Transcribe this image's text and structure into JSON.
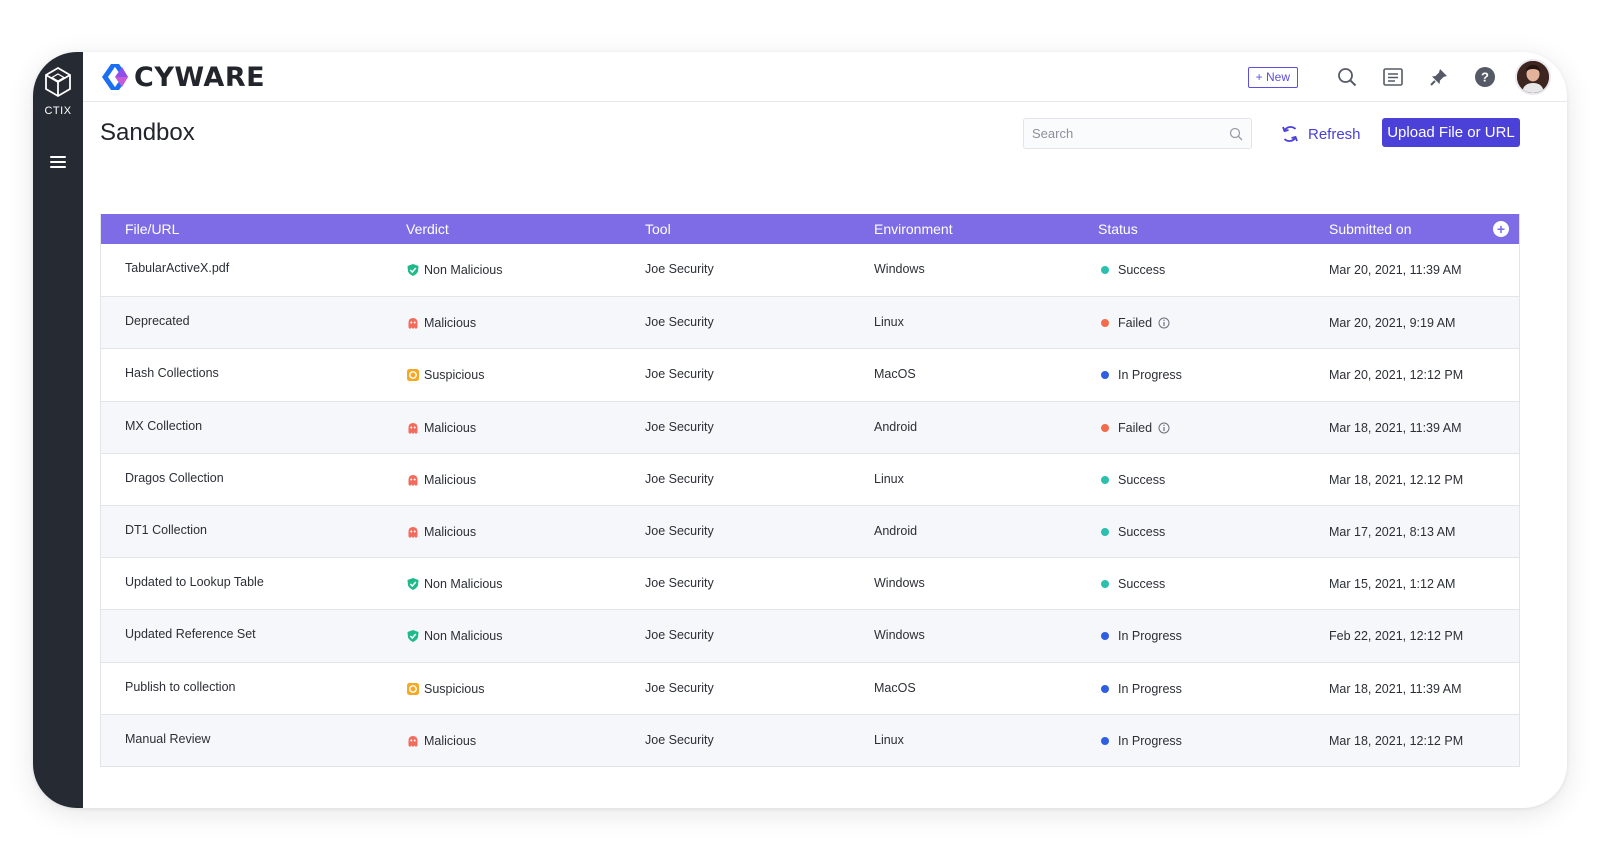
{
  "sidebar": {
    "product_label": "CTIX"
  },
  "header": {
    "logo_text": "CYWARE",
    "new_label": "+ New"
  },
  "page": {
    "title": "Sandbox",
    "search_placeholder": "Search",
    "refresh_label": "Refresh",
    "upload_label": "Upload File or URL"
  },
  "colors": {
    "accent": "#4b40d8",
    "table_header": "#7d6ce5",
    "success": "#2bbfae",
    "failed": "#f26b4c",
    "in_progress": "#2f5fe0",
    "non_malicious": "#1fba8a",
    "malicious": "#f26b5c",
    "suspicious": "#f7a823"
  },
  "table": {
    "columns": [
      "File/URL",
      "Verdict",
      "Tool",
      "Environment",
      "Status",
      "Submitted on"
    ],
    "rows": [
      {
        "file": "TabularActiveX.pdf",
        "verdict": "Non Malicious",
        "tool": "Joe Security",
        "environment": "Windows",
        "status": "Success",
        "submitted": "Mar 20, 2021, 11:39 AM"
      },
      {
        "file": "Deprecated",
        "verdict": "Malicious",
        "tool": "Joe Security",
        "environment": "Linux",
        "status": "Failed",
        "submitted": "Mar 20, 2021, 9:19 AM"
      },
      {
        "file": "Hash Collections",
        "verdict": "Suspicious",
        "tool": "Joe Security",
        "environment": "MacOS",
        "status": "In Progress",
        "submitted": "Mar 20, 2021, 12:12 PM"
      },
      {
        "file": "MX Collection",
        "verdict": "Malicious",
        "tool": "Joe Security",
        "environment": "Android",
        "status": "Failed",
        "submitted": "Mar 18, 2021, 11:39 AM"
      },
      {
        "file": "Dragos Collection",
        "verdict": "Malicious",
        "tool": "Joe Security",
        "environment": "Linux",
        "status": "Success",
        "submitted": "Mar 18, 2021, 12.12 PM"
      },
      {
        "file": "DT1 Collection",
        "verdict": "Malicious",
        "tool": "Joe Security",
        "environment": "Android",
        "status": "Success",
        "submitted": "Mar 17, 2021, 8:13 AM"
      },
      {
        "file": "Updated to Lookup Table",
        "verdict": "Non Malicious",
        "tool": "Joe Security",
        "environment": "Windows",
        "status": "Success",
        "submitted": "Mar 15, 2021, 1:12 AM"
      },
      {
        "file": "Updated Reference Set",
        "verdict": "Non Malicious",
        "tool": "Joe Security",
        "environment": "Windows",
        "status": "In Progress",
        "submitted": "Feb 22, 2021, 12:12 PM"
      },
      {
        "file": "Publish to collection",
        "verdict": "Suspicious",
        "tool": "Joe Security",
        "environment": "MacOS",
        "status": "In Progress",
        "submitted": "Mar 18, 2021, 11:39 AM"
      },
      {
        "file": "Manual Review",
        "verdict": "Malicious",
        "tool": "Joe Security",
        "environment": "Linux",
        "status": "In Progress",
        "submitted": "Mar 18, 2021, 12:12 PM"
      }
    ]
  }
}
